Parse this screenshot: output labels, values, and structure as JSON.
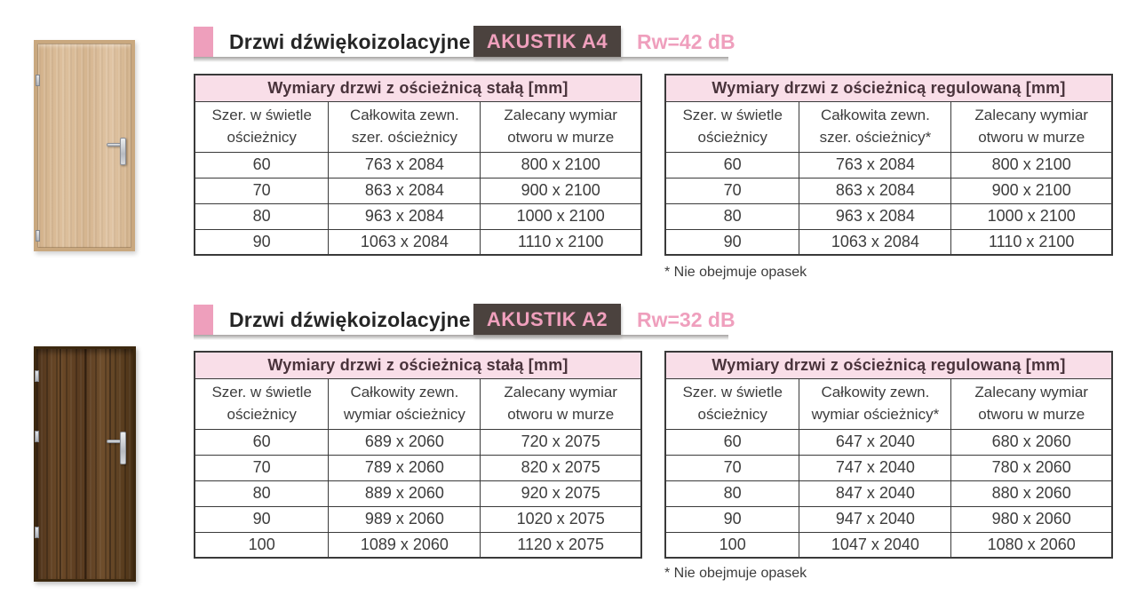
{
  "page_background": "#ffffff",
  "colors": {
    "pink_accent": "#ee9fbc",
    "badge_background": "#4b423e",
    "badge_text": "#f0a0bd",
    "rating_text": "#ef9fbd",
    "table_header_background": "#f9dee8",
    "table_border": "#3a3a3a"
  },
  "sections": [
    {
      "header": {
        "title": "Drzwi dźwiękoizolacyjne",
        "badge": "AKUSTIK A4",
        "rating": "Rw=42 dB"
      },
      "door": "light-wood-door",
      "tables": [
        {
          "title": "Wymiary drzwi z ościeżnicą stałą  [mm]",
          "columns": [
            "Szer. w świetle ościeżnicy",
            "Całkowita zewn. szer. ościeżnicy",
            "Zalecany wymiar otworu w murze"
          ],
          "rows": [
            [
              "60",
              "763 x 2084",
              "800 x 2100"
            ],
            [
              "70",
              "863 x 2084",
              "900 x 2100"
            ],
            [
              "80",
              "963 x 2084",
              "1000 x 2100"
            ],
            [
              "90",
              "1063 x 2084",
              "1110 x 2100"
            ]
          ]
        },
        {
          "title": "Wymiary drzwi z ościeżnicą regulowaną  [mm]",
          "columns": [
            "Szer. w świetle ościeżnicy",
            "Całkowita zewn. szer. ościeżnicy*",
            "Zalecany wymiar otworu w murze"
          ],
          "rows": [
            [
              "60",
              "763 x 2084",
              "800 x 2100"
            ],
            [
              "70",
              "863 x 2084",
              "900 x 2100"
            ],
            [
              "80",
              "963 x 2084",
              "1000 x 2100"
            ],
            [
              "90",
              "1063 x 2084",
              "1110 x 2100"
            ]
          ],
          "footnote": "* Nie obejmuje opasek"
        }
      ]
    },
    {
      "header": {
        "title": "Drzwi dźwiękoizolacyjne",
        "badge": "AKUSTIK A2",
        "rating": "Rw=32 dB"
      },
      "door": "dark-wood-door",
      "tables": [
        {
          "title": "Wymiary drzwi z ościeżnicą stałą [mm]",
          "columns": [
            "Szer. w świetle ościeżnicy",
            "Całkowity zewn. wymiar ościeżnicy",
            "Zalecany wymiar otworu w murze"
          ],
          "rows": [
            [
              "60",
              "689 x 2060",
              "720 x 2075"
            ],
            [
              "70",
              "789 x 2060",
              "820 x 2075"
            ],
            [
              "80",
              "889 x 2060",
              "920 x 2075"
            ],
            [
              "90",
              "989 x 2060",
              "1020 x 2075"
            ],
            [
              "100",
              "1089 x 2060",
              "1120 x 2075"
            ]
          ]
        },
        {
          "title": "Wymiary drzwi z ościeżnicą regulowaną [mm]",
          "columns": [
            "Szer. w świetle ościeżnicy",
            "Całkowity zewn. wymiar ościeżnicy*",
            "Zalecany wymiar otworu w murze"
          ],
          "rows": [
            [
              "60",
              "647 x 2040",
              "680 x 2060"
            ],
            [
              "70",
              "747 x 2040",
              "780 x 2060"
            ],
            [
              "80",
              "847 x 2040",
              "880 x 2060"
            ],
            [
              "90",
              "947 x 2040",
              "980 x 2060"
            ],
            [
              "100",
              "1047 x 2040",
              "1080 x 2060"
            ]
          ],
          "footnote": "* Nie obejmuje opasek"
        }
      ]
    }
  ]
}
